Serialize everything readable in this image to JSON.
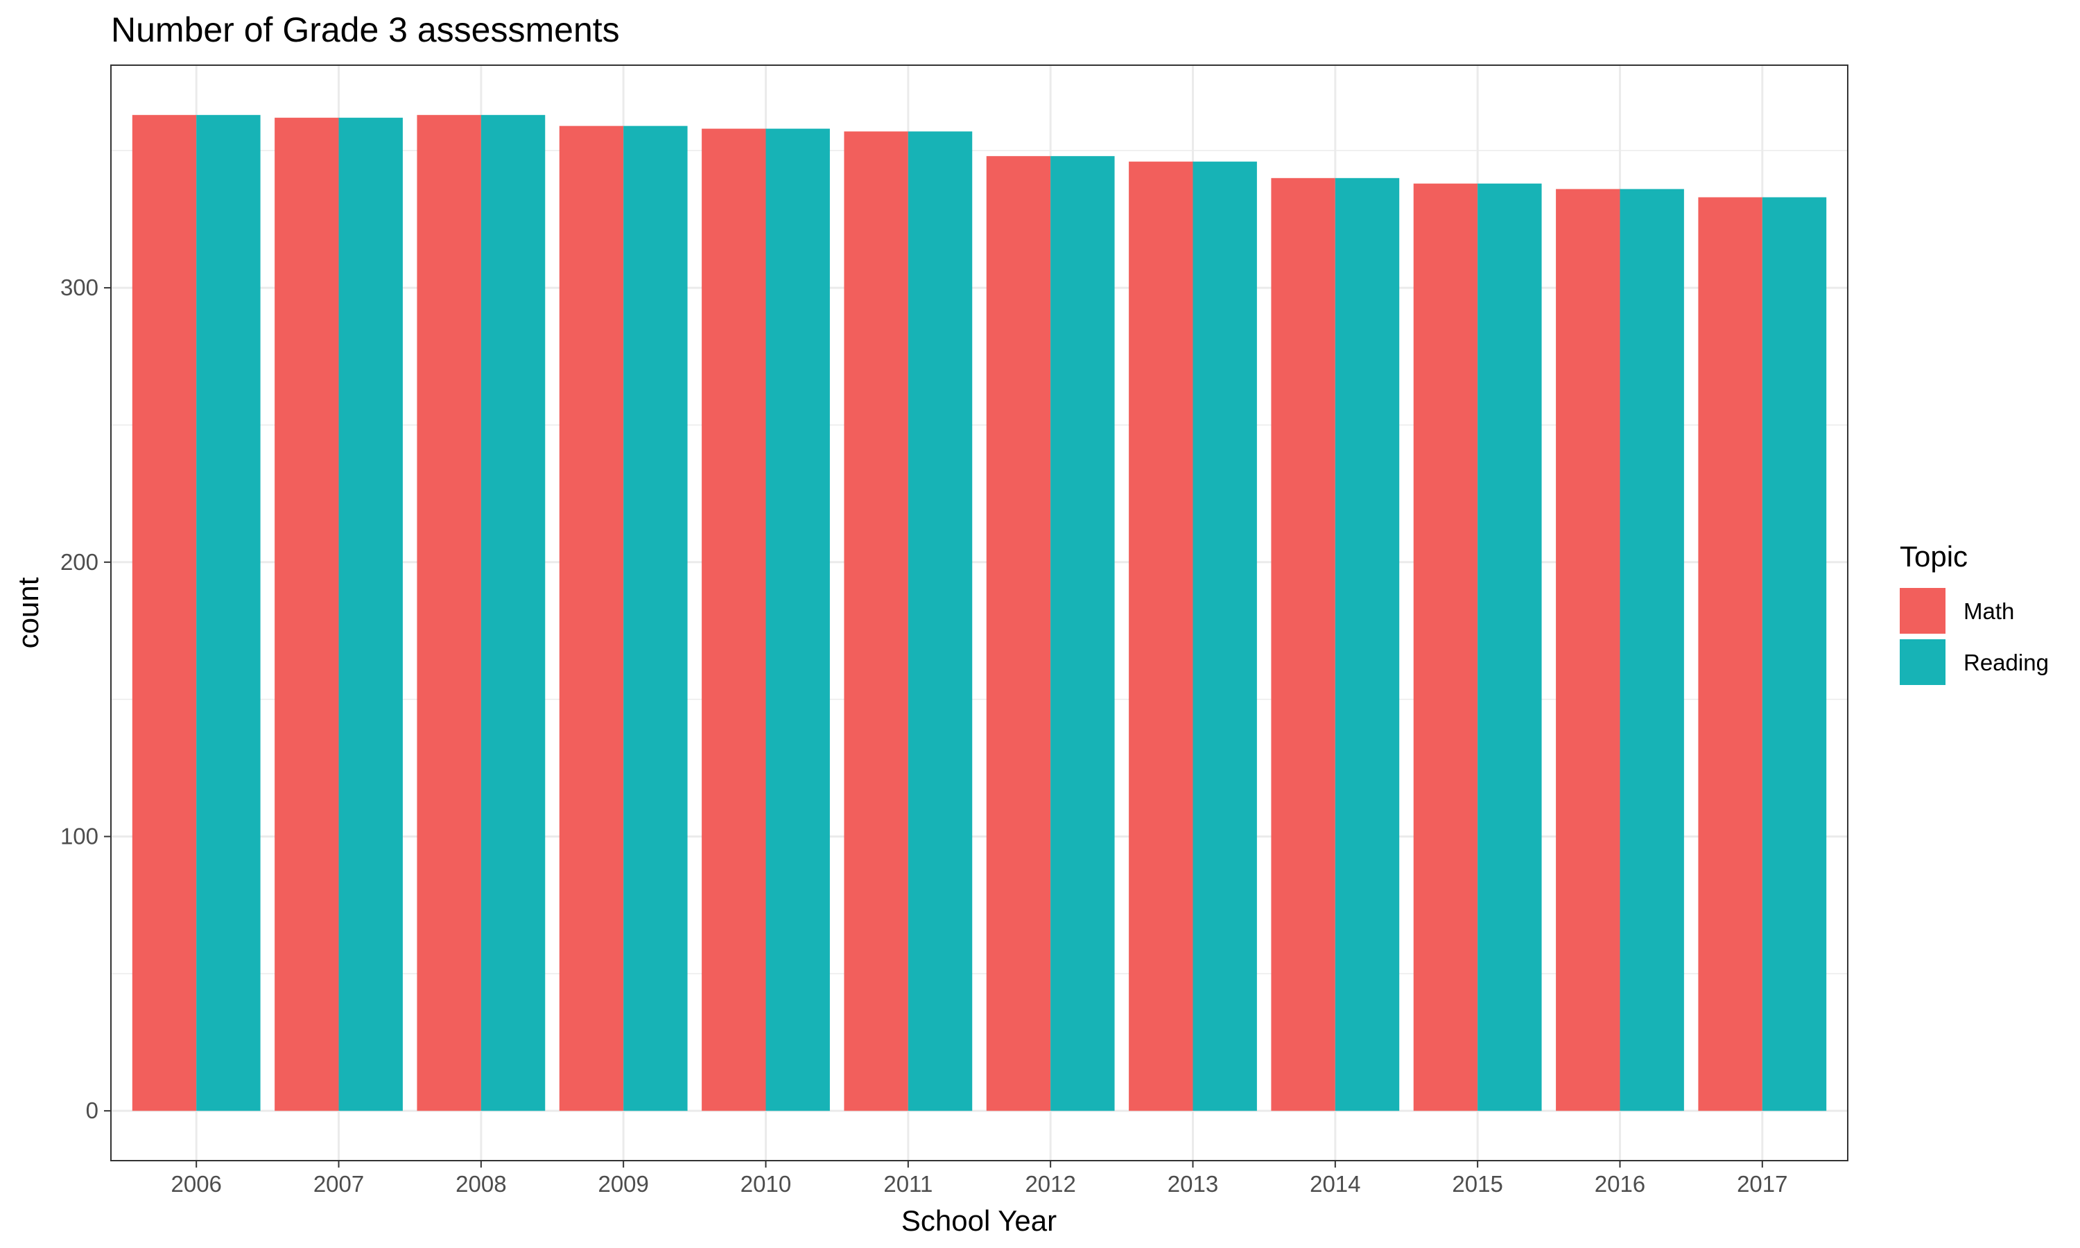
{
  "chart_data": {
    "type": "bar",
    "title": "Number of Grade 3 assessments",
    "xlabel": "School Year",
    "ylabel": "count",
    "categories": [
      "2006",
      "2007",
      "2008",
      "2009",
      "2010",
      "2011",
      "2012",
      "2013",
      "2014",
      "2015",
      "2016",
      "2017"
    ],
    "series": [
      {
        "name": "Math",
        "color": "#F25F5C",
        "values": [
          363,
          362,
          363,
          359,
          358,
          357,
          348,
          346,
          340,
          338,
          336,
          333
        ]
      },
      {
        "name": "Reading",
        "color": "#17B3B6",
        "values": [
          363,
          362,
          363,
          359,
          358,
          357,
          348,
          346,
          340,
          338,
          336,
          333
        ]
      }
    ],
    "ylim": [
      -18.15,
      381.15
    ],
    "yticks": [
      0,
      100,
      200,
      300
    ],
    "grid": true,
    "legend": {
      "title": "Topic",
      "position": "right"
    }
  }
}
